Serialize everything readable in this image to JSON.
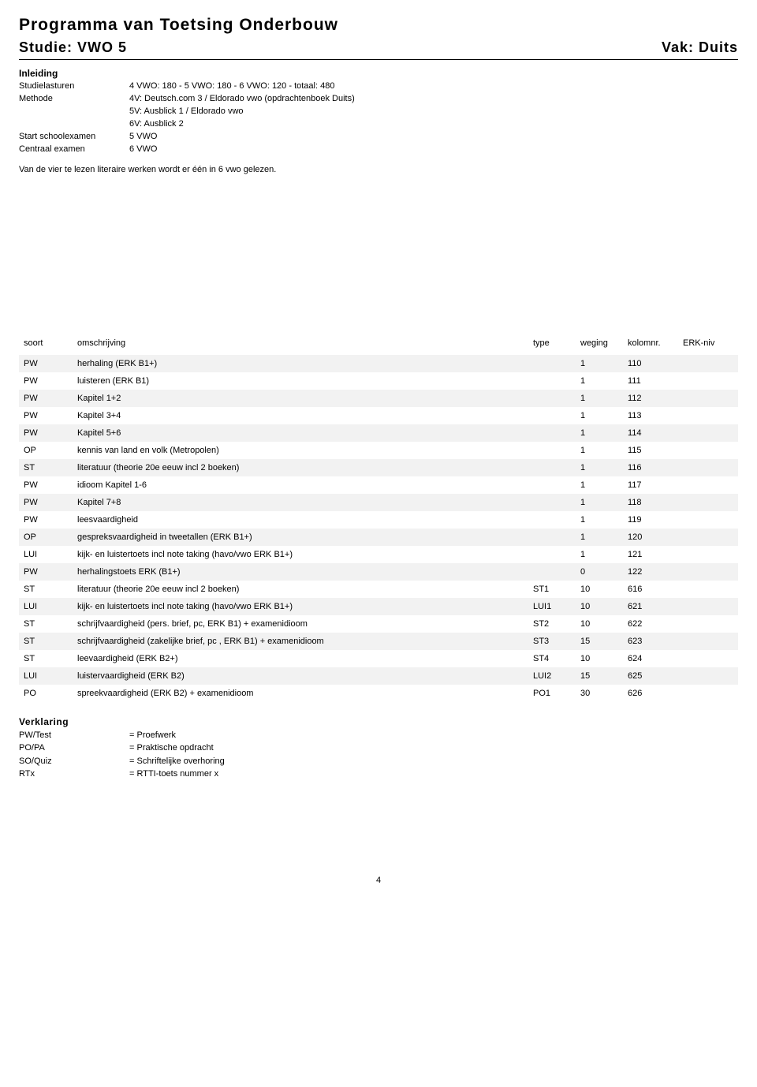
{
  "header": {
    "title": "Programma van Toetsing Onderbouw",
    "studie": "Studie: VWO 5",
    "vak": "Vak: Duits"
  },
  "inleiding": {
    "heading": "Inleiding",
    "studielasturen_label": "Studielasturen",
    "studielasturen_value": "4 VWO: 180 - 5 VWO: 180 - 6 VWO: 120 - totaal: 480",
    "methode_label": "Methode",
    "methode_lines": [
      "4V: Deutsch.com 3 / Eldorado vwo (opdrachtenboek Duits)",
      "5V: Ausblick 1 / Eldorado vwo",
      "6V: Ausblick 2"
    ],
    "start_label": "Start schoolexamen",
    "start_value": "5 VWO",
    "centraal_label": "Centraal examen",
    "centraal_value": "6 VWO",
    "note": "Van de vier te lezen literaire werken wordt er één in 6 vwo gelezen."
  },
  "table": {
    "headers": {
      "soort": "soort",
      "om": "omschrijving",
      "type": "type",
      "weging": "weging",
      "kolom": "kolomnr.",
      "erk": "ERK-niv"
    },
    "rows": [
      {
        "soort": "PW",
        "om": "herhaling (ERK B1+)",
        "type": "",
        "weging": "1",
        "kolom": "110",
        "erk": ""
      },
      {
        "soort": "PW",
        "om": "luisteren (ERK B1)",
        "type": "",
        "weging": "1",
        "kolom": "111",
        "erk": ""
      },
      {
        "soort": "PW",
        "om": "Kapitel 1+2",
        "type": "",
        "weging": "1",
        "kolom": "112",
        "erk": ""
      },
      {
        "soort": "PW",
        "om": "Kapitel 3+4",
        "type": "",
        "weging": "1",
        "kolom": "113",
        "erk": ""
      },
      {
        "soort": "PW",
        "om": "Kapitel 5+6",
        "type": "",
        "weging": "1",
        "kolom": "114",
        "erk": ""
      },
      {
        "soort": "OP",
        "om": "kennis van land en volk (Metropolen)",
        "type": "",
        "weging": "1",
        "kolom": "115",
        "erk": ""
      },
      {
        "soort": "ST",
        "om": "literatuur (theorie 20e eeuw incl 2 boeken)",
        "type": "",
        "weging": "1",
        "kolom": "116",
        "erk": ""
      },
      {
        "soort": "PW",
        "om": "idioom Kapitel 1-6",
        "type": "",
        "weging": "1",
        "kolom": "117",
        "erk": ""
      },
      {
        "soort": "PW",
        "om": "Kapitel 7+8",
        "type": "",
        "weging": "1",
        "kolom": "118",
        "erk": ""
      },
      {
        "soort": "PW",
        "om": "leesvaardigheid",
        "type": "",
        "weging": "1",
        "kolom": "119",
        "erk": ""
      },
      {
        "soort": "OP",
        "om": "gespreksvaardigheid in tweetallen (ERK B1+)",
        "type": "",
        "weging": "1",
        "kolom": "120",
        "erk": ""
      },
      {
        "soort": "LUI",
        "om": "kijk- en luistertoets incl note taking (havo/vwo ERK B1+)",
        "type": "",
        "weging": "1",
        "kolom": "121",
        "erk": ""
      },
      {
        "soort": "PW",
        "om": "herhalingstoets ERK (B1+)",
        "type": "",
        "weging": "0",
        "kolom": "122",
        "erk": ""
      },
      {
        "soort": "ST",
        "om": "literatuur (theorie 20e eeuw incl 2 boeken)",
        "type": "ST1",
        "weging": "10",
        "kolom": "616",
        "erk": ""
      },
      {
        "soort": "LUI",
        "om": "kijk- en luistertoets incl note taking (havo/vwo ERK B1+)",
        "type": "LUI1",
        "weging": "10",
        "kolom": "621",
        "erk": ""
      },
      {
        "soort": "ST",
        "om": "schrijfvaardigheid (pers. brief, pc, ERK B1) + examenidioom",
        "type": "ST2",
        "weging": "10",
        "kolom": "622",
        "erk": ""
      },
      {
        "soort": "ST",
        "om": "schrijfvaardigheid (zakelijke brief, pc , ERK B1) + examenidioom",
        "type": "ST3",
        "weging": "15",
        "kolom": "623",
        "erk": ""
      },
      {
        "soort": "ST",
        "om": "leevaardigheid (ERK B2+)",
        "type": "ST4",
        "weging": "10",
        "kolom": "624",
        "erk": ""
      },
      {
        "soort": "LUI",
        "om": "luistervaardigheid (ERK B2)",
        "type": "LUI2",
        "weging": "15",
        "kolom": "625",
        "erk": ""
      },
      {
        "soort": "PO",
        "om": "spreekvaardigheid (ERK B2) + examenidioom",
        "type": "PO1",
        "weging": "30",
        "kolom": "626",
        "erk": ""
      }
    ]
  },
  "verklaring": {
    "heading": "Verklaring",
    "items": [
      {
        "label": "PW/Test",
        "value": "= Proefwerk"
      },
      {
        "label": "PO/PA",
        "value": "= Praktische opdracht"
      },
      {
        "label": "SO/Quiz",
        "value": "= Schriftelijke overhoring"
      },
      {
        "label": "RTx",
        "value": "= RTTI-toets nummer x"
      }
    ]
  },
  "page_number": "4",
  "colors": {
    "bg": "#ffffff",
    "text": "#000000",
    "row_alt": "#f2f2f2",
    "rule": "#000000"
  },
  "typography": {
    "title_size_pt": 16,
    "subheader_size_pt": 14,
    "body_size_pt": 8.5,
    "font_family": "Verdana"
  }
}
